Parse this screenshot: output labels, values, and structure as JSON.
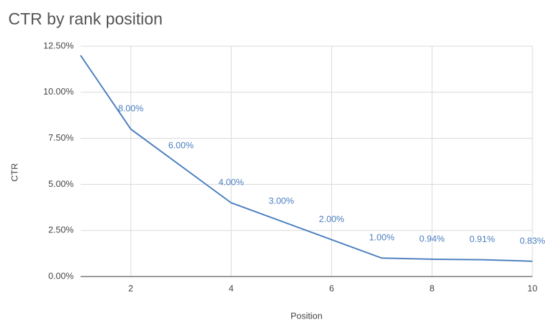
{
  "chart_data": {
    "type": "line",
    "title": "CTR by rank position",
    "x_label": "Position",
    "y_label": "CTR",
    "x": [
      1,
      2,
      3,
      4,
      5,
      6,
      7,
      8,
      9,
      10
    ],
    "series": [
      {
        "name": "CTR",
        "color": "#4a7ebf",
        "values": [
          12,
          8,
          6,
          4,
          3,
          2,
          1,
          0.94,
          0.91,
          0.83
        ],
        "value_labels": [
          null,
          "8.00%",
          "6.00%",
          "4.00%",
          "3.00%",
          "2.00%",
          "1.00%",
          "0.94%",
          "0.91%",
          "0.83%"
        ]
      }
    ],
    "xlim": [
      1,
      10
    ],
    "xticks": [
      2,
      4,
      6,
      8,
      10
    ],
    "ylim": [
      0,
      12.5
    ],
    "yticks": [
      {
        "value": 0,
        "label": "0.00%"
      },
      {
        "value": 2.5,
        "label": "2.50%"
      },
      {
        "value": 5,
        "label": "5.00%"
      },
      {
        "value": 7.5,
        "label": "7.50%"
      },
      {
        "value": 10,
        "label": "10.00%"
      },
      {
        "value": 12.5,
        "label": "12.50%"
      }
    ],
    "grid": true
  }
}
